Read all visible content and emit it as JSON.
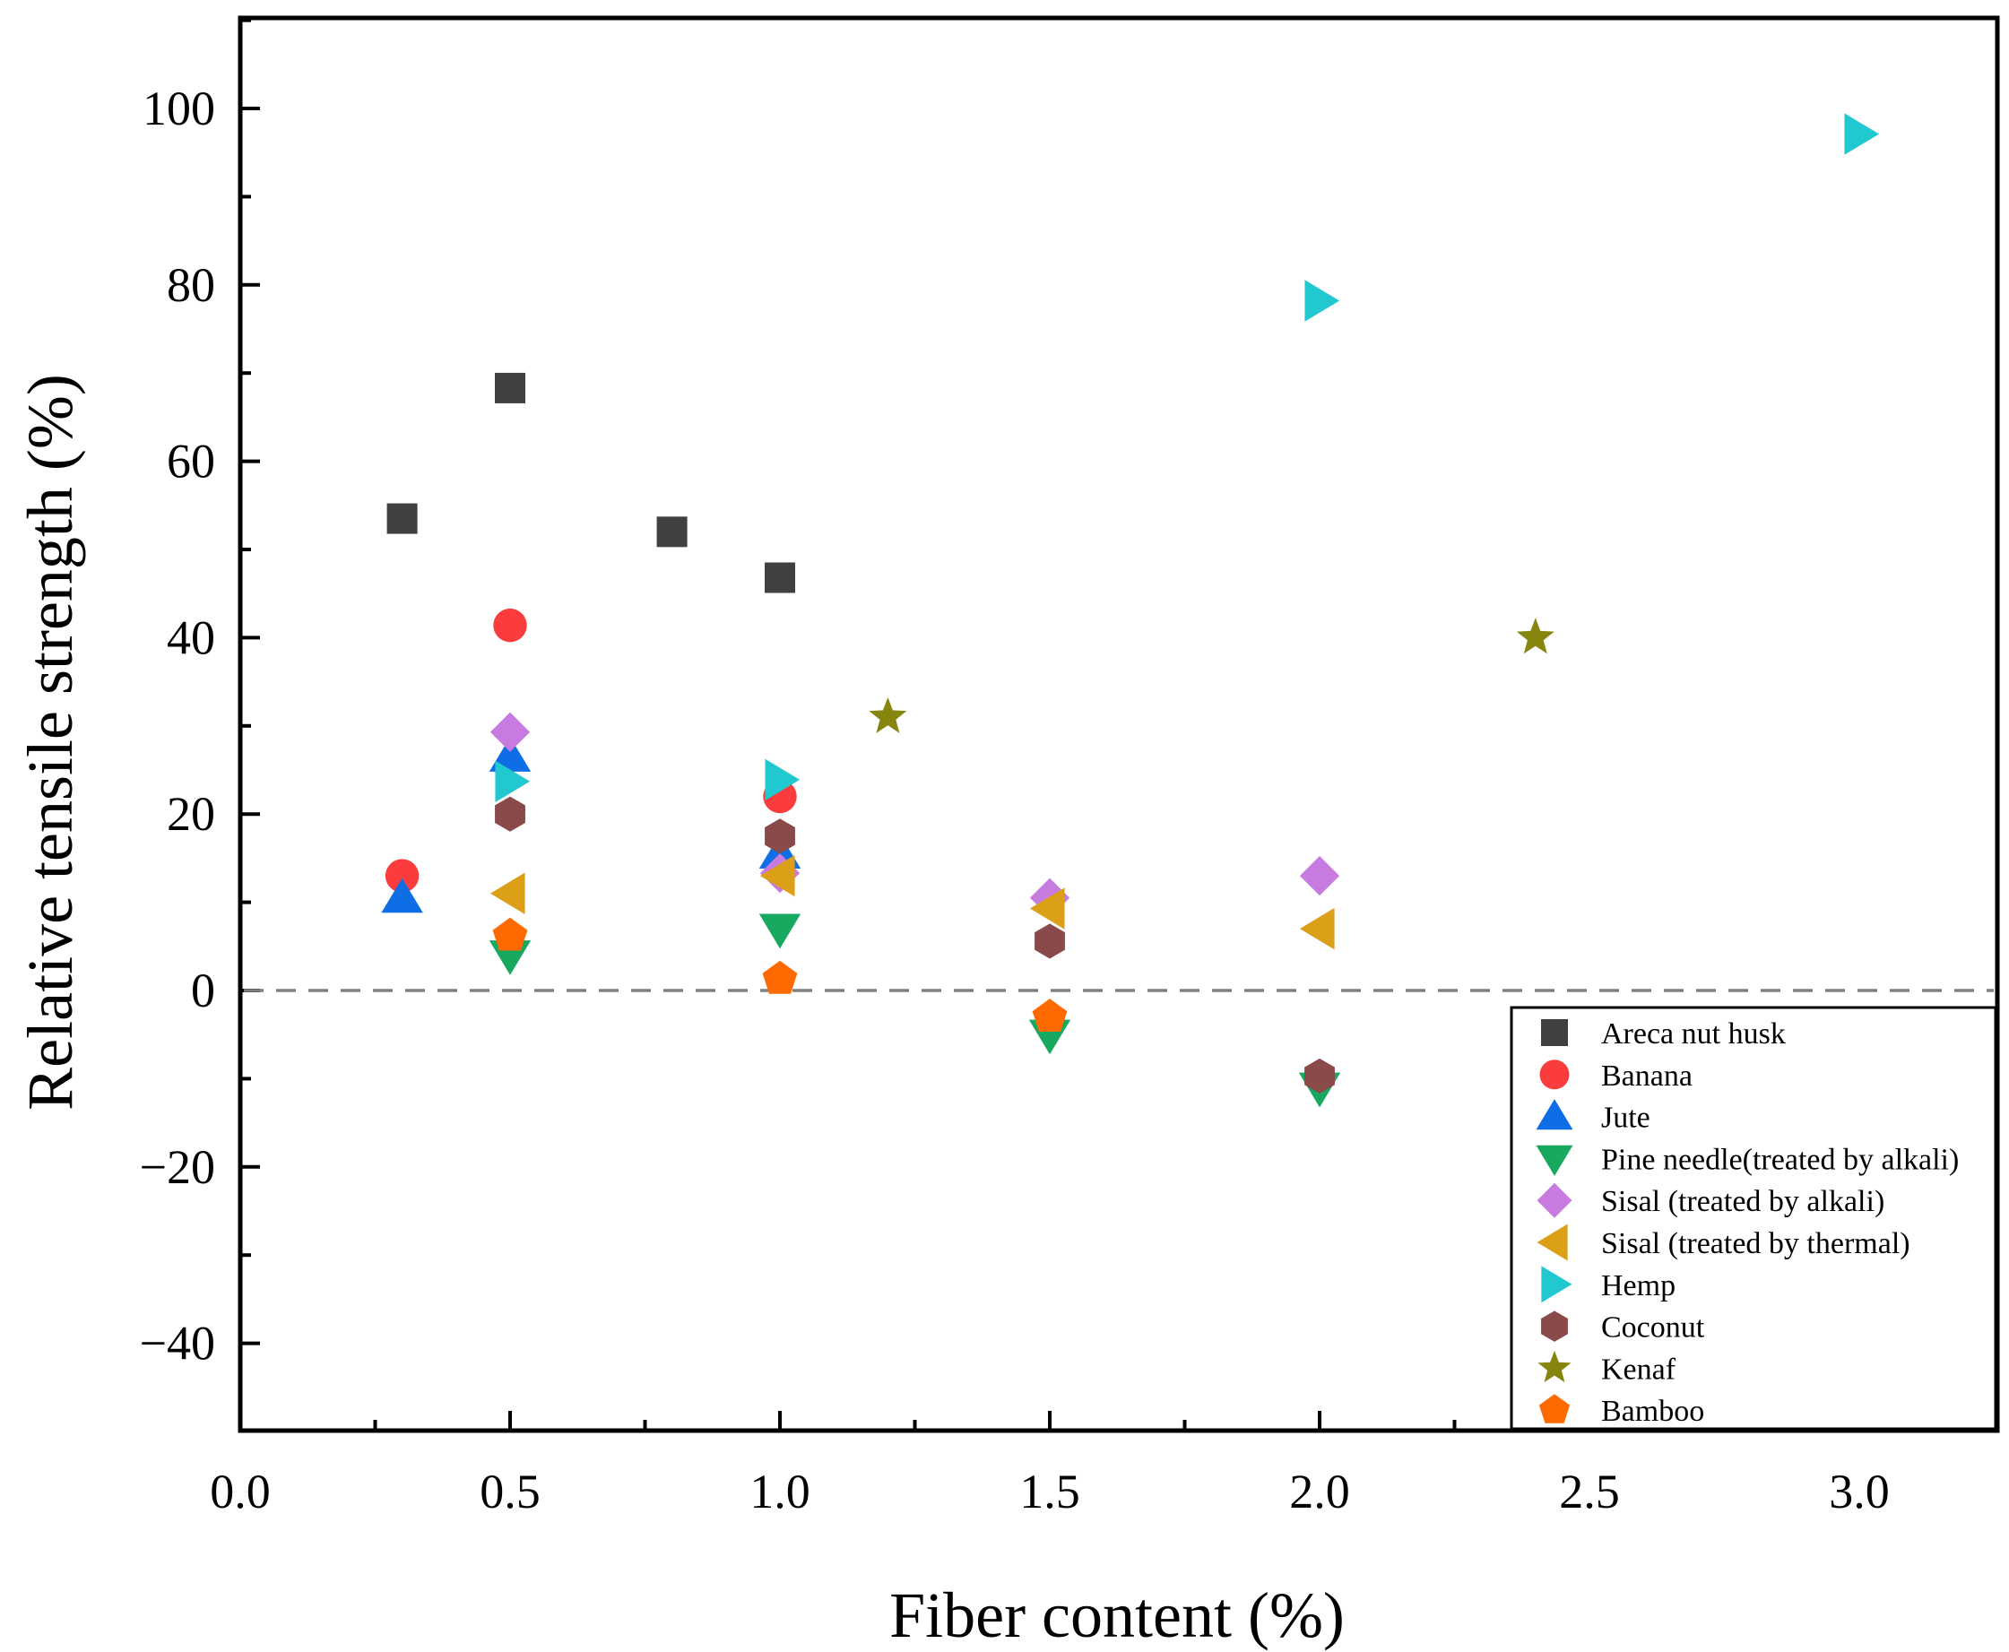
{
  "chart_data": {
    "type": "scatter",
    "title": "",
    "xlabel": "Fiber content (%)",
    "ylabel": "Relative tensile strength (%)",
    "xlim": [
      0.0,
      3.25
    ],
    "ylim": [
      -50,
      110
    ],
    "x_ticks": [
      0.0,
      0.5,
      1.0,
      1.5,
      2.0,
      2.5,
      3.0
    ],
    "x_tick_labels": [
      "0.0",
      "0.5",
      "1.0",
      "1.5",
      "2.0",
      "2.5",
      "3.0"
    ],
    "y_ticks": [
      -40,
      -20,
      0,
      20,
      40,
      60,
      80,
      100
    ],
    "y_tick_labels": [
      "−40",
      "−20",
      "0",
      "20",
      "40",
      "60",
      "80",
      "100"
    ],
    "reference_line": {
      "y": 0,
      "style": "dashed",
      "color": "#808080"
    },
    "grid": false,
    "legend_position": "bottom-right",
    "series": [
      {
        "name": "Areca nut husk",
        "marker": "square",
        "color": "#404040",
        "points": [
          [
            0.3,
            53.5
          ],
          [
            0.5,
            68.3
          ],
          [
            0.8,
            52.0
          ],
          [
            1.0,
            46.8
          ]
        ]
      },
      {
        "name": "Banana",
        "marker": "circle",
        "color": "#fa3c3c",
        "points": [
          [
            0.3,
            13.0
          ],
          [
            0.5,
            41.4
          ],
          [
            1.0,
            22.0
          ]
        ]
      },
      {
        "name": "Jute",
        "marker": "triangle-up",
        "color": "#0f6ee6",
        "points": [
          [
            0.3,
            10.5
          ],
          [
            0.5,
            26.5
          ],
          [
            1.0,
            15.5
          ]
        ]
      },
      {
        "name": "Pine needle(treated by alkali)",
        "marker": "triangle-down",
        "color": "#18a860",
        "points": [
          [
            0.5,
            4.0
          ],
          [
            1.0,
            7.0
          ],
          [
            1.5,
            -5.0
          ],
          [
            2.0,
            -11.0
          ]
        ]
      },
      {
        "name": "Sisal (treated by alkali)",
        "marker": "diamond",
        "color": "#c77be0",
        "points": [
          [
            0.5,
            29.3
          ],
          [
            1.0,
            13.3
          ],
          [
            1.5,
            10.5
          ],
          [
            2.0,
            13.0
          ]
        ]
      },
      {
        "name": "Sisal (treated by thermal)",
        "marker": "triangle-left",
        "color": "#dca018",
        "points": [
          [
            0.5,
            11.0
          ],
          [
            1.0,
            13.0
          ],
          [
            1.5,
            9.3
          ],
          [
            2.0,
            7.0
          ]
        ]
      },
      {
        "name": "Hemp",
        "marker": "triangle-right",
        "color": "#22c8d0",
        "points": [
          [
            0.5,
            23.7
          ],
          [
            1.0,
            23.9
          ],
          [
            2.0,
            78.2
          ],
          [
            3.0,
            97.1
          ]
        ]
      },
      {
        "name": "Coconut",
        "marker": "hexagon",
        "color": "#8a4a4a",
        "points": [
          [
            0.5,
            20.0
          ],
          [
            1.0,
            17.5
          ],
          [
            1.5,
            5.6
          ],
          [
            2.0,
            -9.7
          ]
        ]
      },
      {
        "name": "Kenaf",
        "marker": "star",
        "color": "#86860e",
        "points": [
          [
            1.2,
            31.0
          ],
          [
            2.4,
            40.0
          ]
        ]
      },
      {
        "name": "Bamboo",
        "marker": "pentagon",
        "color": "#ff6a00",
        "points": [
          [
            0.5,
            6.2
          ],
          [
            1.0,
            1.3
          ],
          [
            1.5,
            -3.0
          ]
        ]
      }
    ]
  }
}
